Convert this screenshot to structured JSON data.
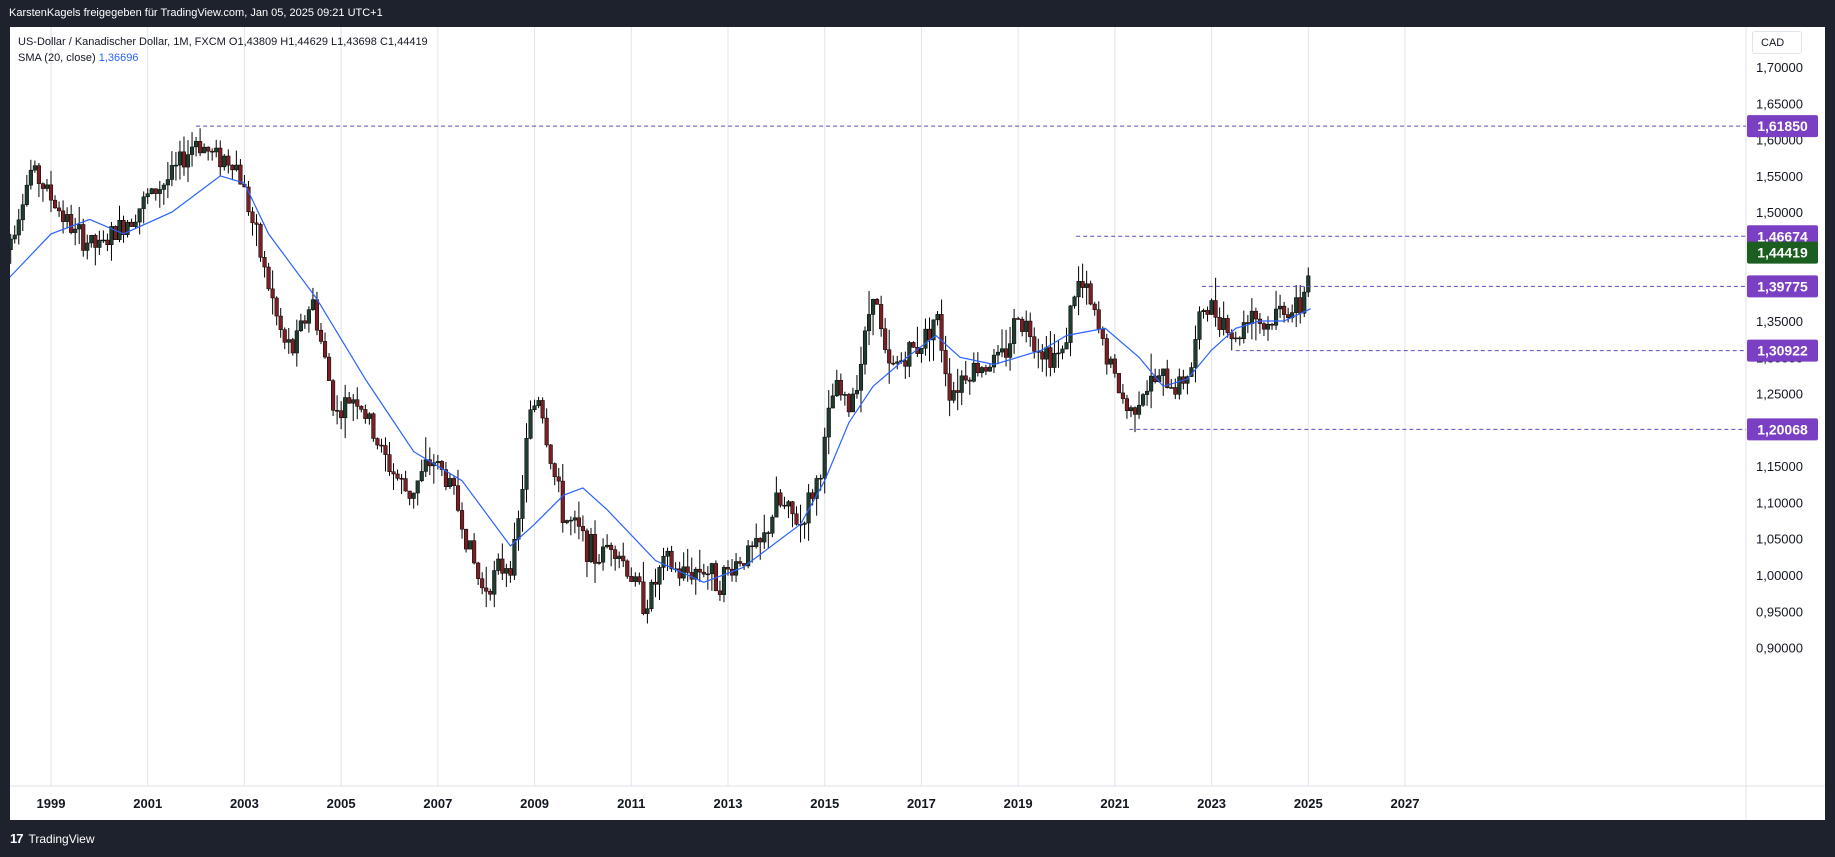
{
  "header": {
    "title": "KarstenKagels freigegeben für TradingView.com, Jan 05, 2025 09:21 UTC+1"
  },
  "legend": {
    "symbol_line": "US-Dollar / Kanadischer Dollar, 1M, FXCM  O1,43809  H1,44629  L1,43698  C1,44419",
    "sma_label": "SMA (20, close)",
    "sma_value": "1,36696"
  },
  "currency_label": "CAD",
  "footer": {
    "brand": "TradingView",
    "logo_icon": "tradingview-logo-icon"
  },
  "colors": {
    "up": "#1f3d2e",
    "down": "#7a1f24",
    "sma": "#2962ff",
    "level": "#5b4cc7",
    "badge": "#7b3fc4",
    "price_badge": "#1b5e20"
  },
  "chart_data": {
    "type": "candlestick",
    "title": "US-Dollar / Kanadischer Dollar, 1M, FXCM",
    "xlabel": "",
    "ylabel": "",
    "x_range": [
      1998.0,
      2028.8
    ],
    "ylim": [
      0.88,
      1.73
    ],
    "grid": true,
    "y_ticks": [
      "0,90000",
      "0,95000",
      "1,00000",
      "1,05000",
      "1,10000",
      "1,15000",
      "1,20000",
      "1,25000",
      "1,30000",
      "1,35000",
      "1,40000",
      "1,45000",
      "1,50000",
      "1,55000",
      "1,60000",
      "1,65000",
      "1,70000"
    ],
    "x_ticks": [
      "1999",
      "2001",
      "2003",
      "2005",
      "2007",
      "2009",
      "2011",
      "2013",
      "2015",
      "2017",
      "2019",
      "2021",
      "2023",
      "2025",
      "2027"
    ],
    "price_path": [
      [
        1998.0,
        1.43
      ],
      [
        1998.6,
        1.56
      ],
      [
        1999.0,
        1.52
      ],
      [
        1999.5,
        1.47
      ],
      [
        2000.0,
        1.45
      ],
      [
        2000.6,
        1.49
      ],
      [
        2001.0,
        1.52
      ],
      [
        2001.5,
        1.55
      ],
      [
        2002.0,
        1.6
      ],
      [
        2002.3,
        1.58
      ],
      [
        2002.8,
        1.57
      ],
      [
        2003.0,
        1.53
      ],
      [
        2003.3,
        1.45
      ],
      [
        2003.8,
        1.32
      ],
      [
        2004.0,
        1.31
      ],
      [
        2004.4,
        1.38
      ],
      [
        2004.9,
        1.22
      ],
      [
        2005.3,
        1.25
      ],
      [
        2005.9,
        1.16
      ],
      [
        2006.4,
        1.11
      ],
      [
        2006.9,
        1.16
      ],
      [
        2007.3,
        1.12
      ],
      [
        2007.6,
        1.05
      ],
      [
        2007.9,
        0.98
      ],
      [
        2008.2,
        1.0
      ],
      [
        2008.6,
        1.03
      ],
      [
        2008.9,
        1.22
      ],
      [
        2009.1,
        1.25
      ],
      [
        2009.3,
        1.17
      ],
      [
        2009.6,
        1.08
      ],
      [
        2009.9,
        1.06
      ],
      [
        2010.3,
        1.02
      ],
      [
        2010.6,
        1.05
      ],
      [
        2010.9,
        1.01
      ],
      [
        2011.3,
        0.96
      ],
      [
        2011.7,
        1.02
      ],
      [
        2012.0,
        1.0
      ],
      [
        2012.5,
        1.01
      ],
      [
        2012.8,
        0.99
      ],
      [
        2013.2,
        1.02
      ],
      [
        2013.7,
        1.04
      ],
      [
        2014.0,
        1.1
      ],
      [
        2014.5,
        1.07
      ],
      [
        2014.9,
        1.14
      ],
      [
        2015.2,
        1.26
      ],
      [
        2015.5,
        1.23
      ],
      [
        2015.8,
        1.31
      ],
      [
        2016.0,
        1.4
      ],
      [
        2016.3,
        1.28
      ],
      [
        2016.8,
        1.31
      ],
      [
        2017.0,
        1.32
      ],
      [
        2017.3,
        1.36
      ],
      [
        2017.6,
        1.25
      ],
      [
        2017.9,
        1.28
      ],
      [
        2018.3,
        1.29
      ],
      [
        2018.7,
        1.3
      ],
      [
        2019.0,
        1.36
      ],
      [
        2019.5,
        1.31
      ],
      [
        2019.9,
        1.3
      ],
      [
        2020.2,
        1.4
      ],
      [
        2020.4,
        1.39
      ],
      [
        2020.7,
        1.33
      ],
      [
        2021.0,
        1.27
      ],
      [
        2021.3,
        1.22
      ],
      [
        2021.5,
        1.25
      ],
      [
        2021.9,
        1.27
      ],
      [
        2022.3,
        1.26
      ],
      [
        2022.6,
        1.29
      ],
      [
        2022.8,
        1.37
      ],
      [
        2023.2,
        1.36
      ],
      [
        2023.5,
        1.32
      ],
      [
        2023.8,
        1.37
      ],
      [
        2024.1,
        1.34
      ],
      [
        2024.5,
        1.37
      ],
      [
        2024.8,
        1.36
      ],
      [
        2024.95,
        1.4
      ],
      [
        2025.05,
        1.44
      ]
    ],
    "sma": {
      "name": "SMA (20, close)",
      "points": [
        [
          1998.0,
          1.4
        ],
        [
          1999.0,
          1.47
        ],
        [
          1999.8,
          1.49
        ],
        [
          2000.5,
          1.47
        ],
        [
          2001.5,
          1.5
        ],
        [
          2002.5,
          1.55
        ],
        [
          2003.0,
          1.54
        ],
        [
          2003.5,
          1.47
        ],
        [
          2004.5,
          1.38
        ],
        [
          2005.5,
          1.27
        ],
        [
          2006.5,
          1.17
        ],
        [
          2007.5,
          1.13
        ],
        [
          2008.5,
          1.04
        ],
        [
          2009.0,
          1.07
        ],
        [
          2009.6,
          1.11
        ],
        [
          2010.0,
          1.12
        ],
        [
          2010.5,
          1.09
        ],
        [
          2011.5,
          1.02
        ],
        [
          2012.5,
          0.99
        ],
        [
          2013.3,
          1.01
        ],
        [
          2014.5,
          1.07
        ],
        [
          2015.0,
          1.13
        ],
        [
          2015.5,
          1.21
        ],
        [
          2016.0,
          1.26
        ],
        [
          2016.7,
          1.3
        ],
        [
          2017.3,
          1.33
        ],
        [
          2017.8,
          1.3
        ],
        [
          2018.5,
          1.29
        ],
        [
          2019.5,
          1.31
        ],
        [
          2020.0,
          1.33
        ],
        [
          2020.8,
          1.34
        ],
        [
          2021.5,
          1.3
        ],
        [
          2022.0,
          1.26
        ],
        [
          2022.5,
          1.27
        ],
        [
          2023.0,
          1.31
        ],
        [
          2023.5,
          1.34
        ],
        [
          2024.0,
          1.35
        ],
        [
          2024.5,
          1.35
        ],
        [
          2025.05,
          1.367
        ]
      ]
    },
    "levels": [
      {
        "label": "1,61850",
        "value": 1.6185,
        "from": 2002.0
      },
      {
        "label": "1,46674",
        "value": 1.46674,
        "from": 2020.2
      },
      {
        "label": "1,39775",
        "value": 1.39775,
        "from": 2022.8
      },
      {
        "label": "1,30922",
        "value": 1.30922,
        "from": 2023.5
      },
      {
        "label": "1,20068",
        "value": 1.20068,
        "from": 2021.3
      }
    ],
    "last_price": {
      "label": "1,44419",
      "value": 1.44419
    }
  }
}
